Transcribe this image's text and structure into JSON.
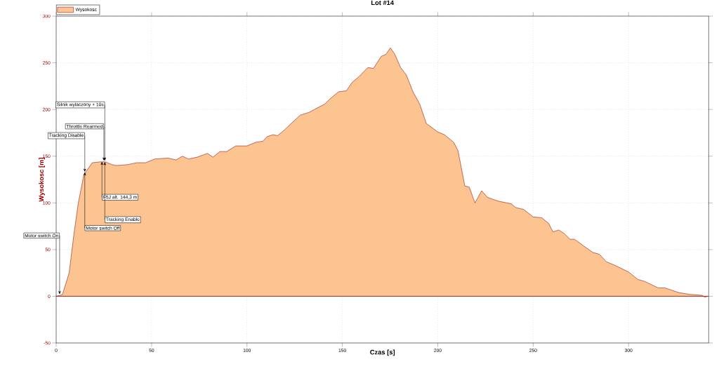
{
  "chart_data": {
    "type": "area",
    "title": "Lot #14",
    "xlabel": "Czas [s]",
    "ylabel": "Wysokosc [m]",
    "xlim": [
      0,
      342
    ],
    "ylim": [
      -50,
      300
    ],
    "xticks": [
      0,
      50,
      100,
      150,
      200,
      250,
      300
    ],
    "yticks": [
      -50,
      0,
      50,
      100,
      150,
      200,
      250,
      300
    ],
    "grid": true,
    "legend": "top left",
    "series": [
      {
        "name": "Wysokosc",
        "color": "#fbc490",
        "x": [
          0,
          2,
          3.3,
          6.8,
          9.2,
          11.6,
          14.5,
          18.9,
          23.3,
          25.7,
          29.2,
          31.6,
          37.5,
          42.2,
          46.9,
          51.6,
          58.7,
          62.8,
          66.2,
          69.3,
          74,
          79.3,
          82.2,
          85.8,
          89.4,
          94.1,
          100,
          104.7,
          108.3,
          110.6,
          113.7,
          116,
          119.6,
          123.2,
          127.9,
          132.6,
          136.2,
          140.9,
          143.3,
          148,
          152.1,
          155.1,
          158.6,
          163.4,
          166.3,
          170.4,
          172.8,
          175.2,
          177.5,
          180.5,
          183.5,
          187,
          190.5,
          194,
          200,
          203.5,
          208.3,
          210.6,
          214.2,
          216.5,
          219.5,
          223,
          226,
          231.4,
          238.5,
          240.9,
          245,
          250,
          254.5,
          258.1,
          260.4,
          263.4,
          266.4,
          269.3,
          271.7,
          276.4,
          281.2,
          284.7,
          288.3,
          293,
          300,
          304.9,
          308.4,
          315.5,
          319,
          326.2,
          332.1,
          338.6,
          339.8,
          341.6
        ],
        "values": [
          0,
          1,
          2,
          25,
          65,
          100,
          130,
          143,
          144,
          144,
          141,
          140,
          141,
          143,
          143,
          147,
          148,
          146,
          150,
          147,
          149,
          153,
          149,
          155,
          155,
          161,
          161,
          165,
          166,
          171,
          173,
          172,
          178,
          185,
          194,
          197,
          201,
          206,
          211,
          219,
          220,
          229,
          235,
          245,
          244,
          257,
          259,
          266,
          259,
          245,
          237,
          219,
          206,
          185,
          176,
          173,
          165,
          156,
          118,
          117,
          100,
          113,
          106,
          102,
          99,
          95,
          93,
          85,
          84,
          78,
          69,
          71,
          67,
          61,
          61,
          54,
          47,
          45,
          37,
          33,
          26,
          18,
          16,
          9,
          9,
          4,
          2,
          1,
          -1,
          0
        ]
      }
    ],
    "annotations": [
      {
        "text": "Motor switch On",
        "x": 1.8,
        "y": 2
      },
      {
        "text": "Tracking Disable",
        "x": 15,
        "y": 133
      },
      {
        "text": "Motor switch Off",
        "x": 15,
        "y": 133
      },
      {
        "text": "Throttle Rearmed",
        "x": 25,
        "y": 145
      },
      {
        "text": "Silnik wylaczony + 10s",
        "x": 25.5,
        "y": 145
      },
      {
        "text": "F5J alt. 144,3 m",
        "x": 24,
        "y": 144.3
      },
      {
        "text": "Tracking Enable",
        "x": 25.5,
        "y": 144
      }
    ]
  }
}
